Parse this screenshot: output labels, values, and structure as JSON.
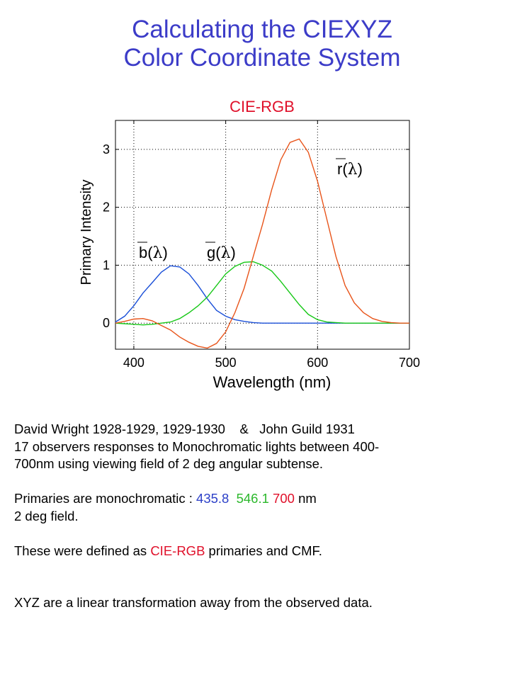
{
  "slide": {
    "title_line1": "Calculating the CIEXYZ",
    "title_line2": "Color Coordinate System"
  },
  "colors": {
    "title": "#3c3cc8",
    "accent_red": "#e0102a",
    "blue": "#1a4fd8",
    "green": "#18c818",
    "red_curve": "#e8541a",
    "blue_text": "#2c40c8",
    "green_text": "#2cb82c"
  },
  "chart_data": {
    "type": "line",
    "title": "CIE-RGB",
    "xlabel": "Wavelength (nm)",
    "ylabel": "Primary Intensity",
    "xlim": [
      380,
      700
    ],
    "ylim": [
      -0.45,
      3.5
    ],
    "xticks": [
      400,
      500,
      600,
      700
    ],
    "yticks": [
      0,
      1,
      2,
      3
    ],
    "grid": "dotted",
    "series": [
      {
        "name": "b(λ)",
        "label_parts": [
          "b",
          "(",
          "λ",
          ")"
        ],
        "color": "#1a4fd8",
        "x": [
          380,
          390,
          400,
          410,
          420,
          430,
          440,
          450,
          460,
          470,
          480,
          490,
          500,
          510,
          520,
          530,
          540,
          550,
          560,
          570,
          580,
          590,
          600,
          610,
          620,
          630,
          640,
          650,
          660,
          670,
          680,
          690,
          700
        ],
        "values": [
          0.02,
          0.12,
          0.3,
          0.52,
          0.7,
          0.88,
          0.99,
          0.97,
          0.85,
          0.65,
          0.42,
          0.22,
          0.12,
          0.06,
          0.03,
          0.01,
          0.0,
          0.0,
          0.0,
          0.0,
          0.0,
          0.0,
          0.0,
          0.0,
          0.0,
          0.0,
          0.0,
          0.0,
          0.0,
          0.0,
          0.0,
          0.0,
          0.0
        ]
      },
      {
        "name": "g(λ)",
        "label_parts": [
          "g",
          "(",
          "λ",
          ")"
        ],
        "color": "#18c818",
        "x": [
          380,
          390,
          400,
          410,
          420,
          430,
          440,
          450,
          460,
          470,
          480,
          490,
          500,
          510,
          520,
          530,
          540,
          550,
          560,
          570,
          580,
          590,
          600,
          610,
          620,
          630,
          640,
          650,
          660,
          670,
          680,
          690,
          700
        ],
        "values": [
          0.0,
          -0.01,
          -0.02,
          -0.03,
          -0.02,
          0.0,
          0.02,
          0.08,
          0.18,
          0.3,
          0.45,
          0.65,
          0.85,
          0.98,
          1.05,
          1.06,
          1.0,
          0.9,
          0.72,
          0.52,
          0.32,
          0.15,
          0.06,
          0.02,
          0.01,
          0.0,
          0.0,
          0.0,
          0.0,
          0.0,
          0.0,
          0.0,
          0.0
        ]
      },
      {
        "name": "r(λ)",
        "label_parts": [
          "r",
          "(",
          "λ",
          ")"
        ],
        "color": "#e8541a",
        "x": [
          380,
          390,
          400,
          410,
          420,
          430,
          440,
          450,
          460,
          470,
          480,
          490,
          500,
          510,
          520,
          530,
          540,
          550,
          560,
          570,
          580,
          590,
          600,
          610,
          620,
          630,
          640,
          650,
          660,
          670,
          680,
          690,
          700
        ],
        "values": [
          0.0,
          0.03,
          0.07,
          0.08,
          0.04,
          -0.04,
          -0.12,
          -0.24,
          -0.33,
          -0.4,
          -0.43,
          -0.35,
          -0.15,
          0.18,
          0.6,
          1.15,
          1.7,
          2.3,
          2.82,
          3.12,
          3.18,
          2.95,
          2.45,
          1.8,
          1.15,
          0.65,
          0.35,
          0.18,
          0.08,
          0.03,
          0.01,
          0.0,
          0.0
        ]
      }
    ]
  },
  "text": {
    "line1": "David Wright 1928-1929, 1929-1930    &   John Guild 1931",
    "line2": "17 observers responses to Monochromatic lights between 400-",
    "line3": "700nm using viewing field of 2 deg angular subtense.",
    "primaries_prefix": "Primaries are monochromatic : ",
    "primary_blue": "435.8",
    "primary_green": "546.1",
    "primary_red": "700",
    "primaries_unit": "nm",
    "field": "2 deg field.",
    "defined_prefix": "These were defined as ",
    "defined_highlight": "CIE-RGB",
    "defined_suffix": " primaries and CMF.",
    "xyz_note": "XYZ are a linear transformation away from the observed data."
  }
}
